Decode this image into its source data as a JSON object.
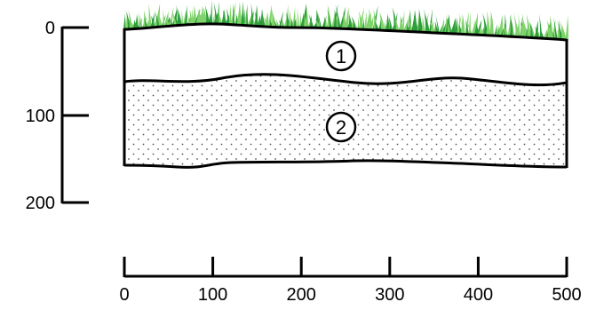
{
  "colors": {
    "line": "#000000",
    "grass_light": "#7fd36a",
    "grass_dark": "#2e9e3a",
    "stipple": "#555555",
    "background": "#ffffff"
  },
  "depth_axis": {
    "ticks": [
      "0",
      "100",
      "200"
    ]
  },
  "distance_axis": {
    "ticks": [
      "0",
      "100",
      "200",
      "300",
      "400",
      "500"
    ]
  },
  "layers": [
    {
      "marker": "1",
      "pattern": "plain"
    },
    {
      "marker": "2",
      "pattern": "stippled"
    }
  ],
  "surface": {
    "cover_icon": "grass-icon"
  }
}
